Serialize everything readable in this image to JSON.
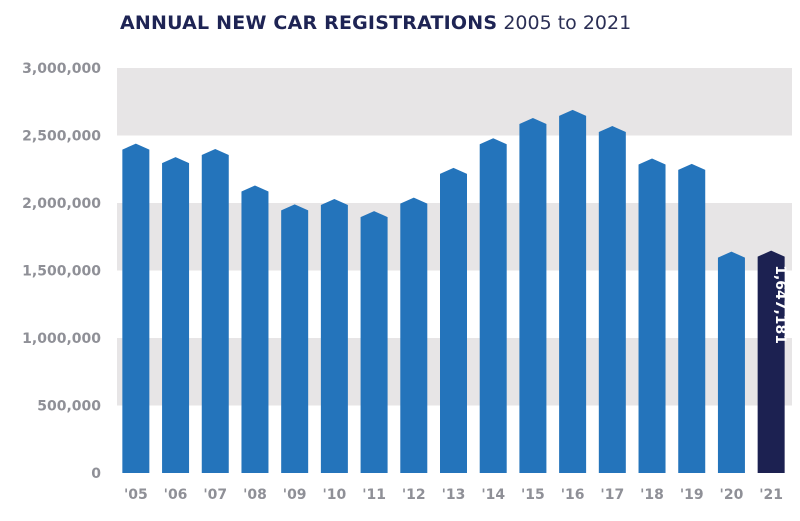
{
  "header": {
    "title_main": "ANNUAL NEW CAR REGISTRATIONS",
    "title_sub": "2005 to 2021"
  },
  "colors": {
    "bar": "#2474bb",
    "highlight_bar": "#1c2151",
    "band": "#e7e5e6",
    "tick_text": "#8f9097",
    "title": "#1e2454"
  },
  "chart_data": {
    "type": "bar",
    "title": "ANNUAL NEW CAR REGISTRATIONS 2005 to 2021",
    "xlabel": "",
    "ylabel": "",
    "ylim": [
      0,
      3000000
    ],
    "grid": "alternating horizontal bands",
    "categories": [
      "'05",
      "'06",
      "'07",
      "'08",
      "'09",
      "'10",
      "'11",
      "'12",
      "'13",
      "'14",
      "'15",
      "'16",
      "'17",
      "'18",
      "'19",
      "'20",
      "'21"
    ],
    "values": [
      2440000,
      2340000,
      2400000,
      2130000,
      1990000,
      2030000,
      1940000,
      2040000,
      2260000,
      2480000,
      2630000,
      2690000,
      2570000,
      2330000,
      2290000,
      1640000,
      1647181
    ],
    "yticks": [
      0,
      500000,
      1000000,
      1500000,
      2000000,
      2500000,
      3000000
    ],
    "ytick_labels": [
      "0",
      "500,000",
      "1,000,000",
      "1,500,000",
      "2,000,000",
      "2,500,000",
      "3,000,000"
    ],
    "highlight": {
      "index": 16,
      "label": "1,647,181"
    }
  }
}
